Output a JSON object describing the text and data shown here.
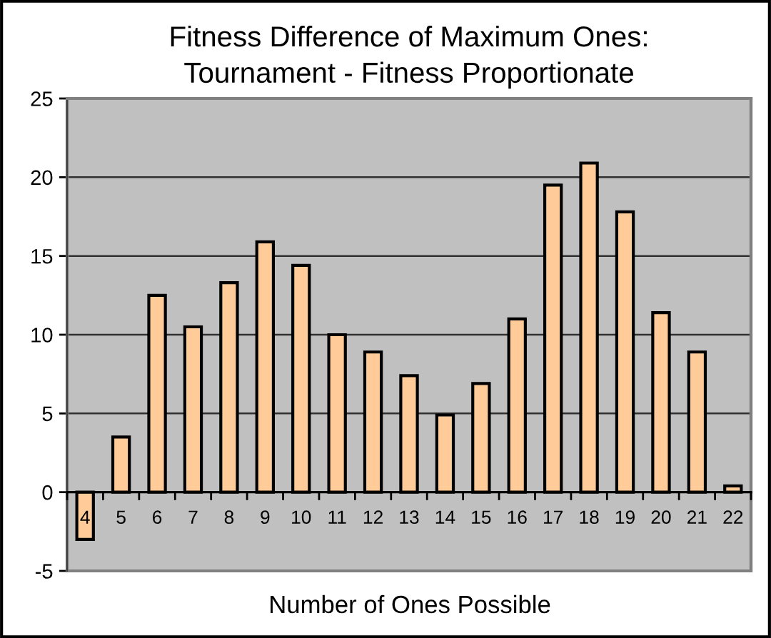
{
  "chart_data": {
    "type": "bar",
    "title": "Fitness Difference of Maximum Ones:\nTournament - Fitness Proportionate",
    "xlabel": "Number of Ones Possible",
    "categories": [
      "4",
      "5",
      "6",
      "7",
      "8",
      "9",
      "10",
      "11",
      "12",
      "13",
      "14",
      "15",
      "16",
      "17",
      "18",
      "19",
      "20",
      "21",
      "22"
    ],
    "values": [
      -3,
      3.5,
      12.5,
      10.5,
      13.3,
      15.9,
      14.4,
      10,
      8.9,
      7.4,
      4.9,
      6.9,
      11,
      19.5,
      20.9,
      17.8,
      11.4,
      8.9,
      0.4
    ],
    "color": "#ffcc99",
    "ylim": [
      -5,
      25
    ],
    "yticks": [
      -5,
      0,
      5,
      10,
      15,
      20,
      25
    ],
    "grid": "y"
  }
}
